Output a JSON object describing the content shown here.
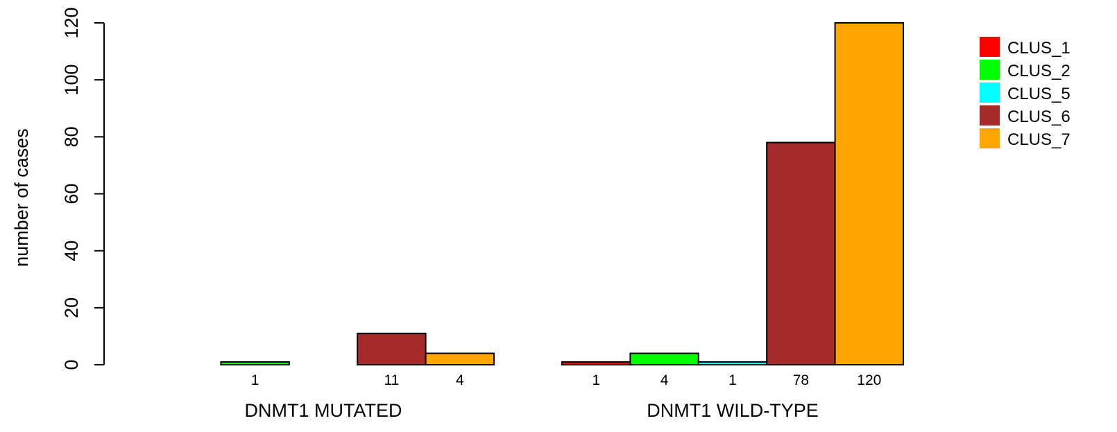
{
  "chart_data": {
    "type": "bar",
    "groups": [
      "DNMT1 MUTATED",
      "DNMT1 WILD-TYPE"
    ],
    "series": [
      {
        "name": "CLUS_1",
        "color": "#ff0000",
        "values": [
          0,
          1
        ]
      },
      {
        "name": "CLUS_2",
        "color": "#00ff00",
        "values": [
          1,
          4
        ]
      },
      {
        "name": "CLUS_5",
        "color": "#00ffff",
        "values": [
          0,
          1
        ]
      },
      {
        "name": "CLUS_6",
        "color": "#a52a2a",
        "values": [
          11,
          78
        ]
      },
      {
        "name": "CLUS_7",
        "color": "#ffa500",
        "values": [
          4,
          120
        ]
      }
    ],
    "bar_labels": [
      [
        "",
        "1",
        "",
        "11",
        "4"
      ],
      [
        "1",
        "4",
        "1",
        "78",
        "120"
      ]
    ],
    "ylabel": "number of cases",
    "yticks": [
      0,
      20,
      40,
      60,
      80,
      100,
      120
    ],
    "ylim": [
      0,
      120
    ],
    "legend_position": "top-right",
    "grid": false
  }
}
